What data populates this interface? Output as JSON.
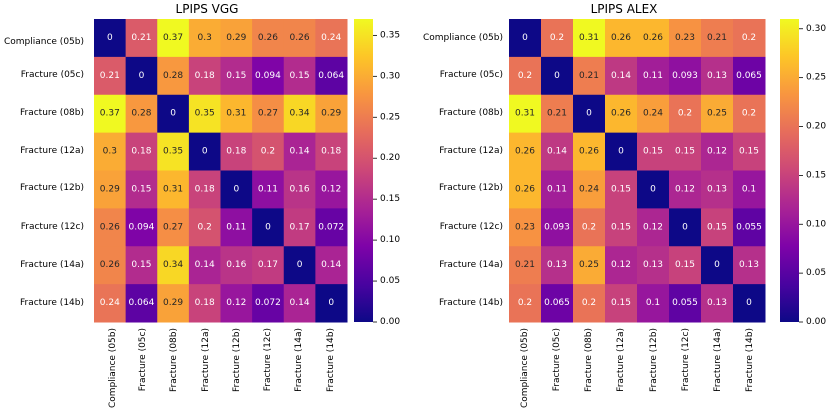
{
  "chart_data": [
    {
      "type": "heatmap",
      "title": "LPIPS VGG",
      "labels": [
        "Compliance (05b)",
        "Fracture (05c)",
        "Fracture (08b)",
        "Fracture (12a)",
        "Fracture (12b)",
        "Fracture (12c)",
        "Fracture (14a)",
        "Fracture (14b)"
      ],
      "values": [
        [
          0,
          0.21,
          0.37,
          0.3,
          0.29,
          0.26,
          0.26,
          0.24
        ],
        [
          0.21,
          0,
          0.28,
          0.18,
          0.15,
          0.094,
          0.15,
          0.064
        ],
        [
          0.37,
          0.28,
          0,
          0.35,
          0.31,
          0.27,
          0.34,
          0.29
        ],
        [
          0.3,
          0.18,
          0.35,
          0,
          0.18,
          0.2,
          0.14,
          0.18
        ],
        [
          0.29,
          0.15,
          0.31,
          0.18,
          0,
          0.11,
          0.16,
          0.12
        ],
        [
          0.26,
          0.094,
          0.27,
          0.2,
          0.11,
          0,
          0.17,
          0.072
        ],
        [
          0.26,
          0.15,
          0.34,
          0.14,
          0.16,
          0.17,
          0,
          0.14
        ],
        [
          0.24,
          0.064,
          0.29,
          0.18,
          0.12,
          0.072,
          0.14,
          0
        ]
      ],
      "colorbar": {
        "range": [
          0,
          0.37
        ],
        "ticks": [
          0,
          0.05,
          0.1,
          0.15,
          0.2,
          0.25,
          0.3,
          0.35
        ],
        "tick_labels": [
          "0.00",
          "0.05",
          "0.10",
          "0.15",
          "0.20",
          "0.25",
          "0.30",
          "0.35"
        ]
      },
      "colormap": "plasma"
    },
    {
      "type": "heatmap",
      "title": "LPIPS ALEX",
      "labels": [
        "Compliance (05b)",
        "Fracture (05c)",
        "Fracture (08b)",
        "Fracture (12a)",
        "Fracture (12b)",
        "Fracture (12c)",
        "Fracture (14a)",
        "Fracture (14b)"
      ],
      "values": [
        [
          0,
          0.2,
          0.31,
          0.26,
          0.26,
          0.23,
          0.21,
          0.2
        ],
        [
          0.2,
          0,
          0.21,
          0.14,
          0.11,
          0.093,
          0.13,
          0.065
        ],
        [
          0.31,
          0.21,
          0,
          0.26,
          0.24,
          0.2,
          0.25,
          0.2
        ],
        [
          0.26,
          0.14,
          0.26,
          0,
          0.15,
          0.15,
          0.12,
          0.15
        ],
        [
          0.26,
          0.11,
          0.24,
          0.15,
          0,
          0.12,
          0.13,
          0.1
        ],
        [
          0.23,
          0.093,
          0.2,
          0.15,
          0.12,
          0,
          0.15,
          0.055
        ],
        [
          0.21,
          0.13,
          0.25,
          0.12,
          0.13,
          0.15,
          0,
          0.13
        ],
        [
          0.2,
          0.065,
          0.2,
          0.15,
          0.1,
          0.055,
          0.13,
          0
        ]
      ],
      "colorbar": {
        "range": [
          0,
          0.31
        ],
        "ticks": [
          0,
          0.05,
          0.1,
          0.15,
          0.2,
          0.25,
          0.3
        ],
        "tick_labels": [
          "0.00",
          "0.05",
          "0.10",
          "0.15",
          "0.20",
          "0.25",
          "0.30"
        ]
      },
      "colormap": "plasma"
    }
  ]
}
